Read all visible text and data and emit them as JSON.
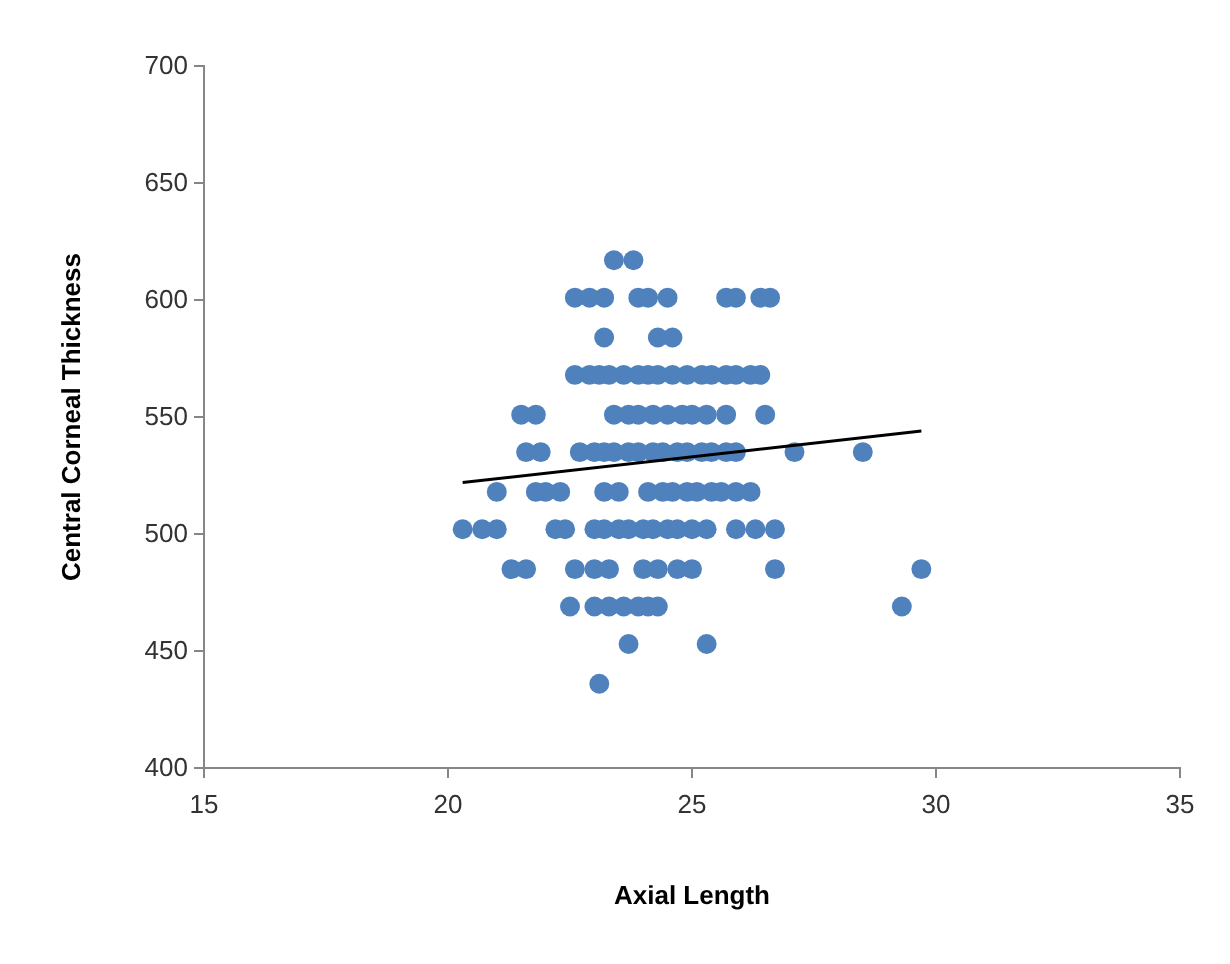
{
  "chart_data": {
    "type": "scatter",
    "xlabel": "Axial Length",
    "ylabel": "Central Corneal Thickness",
    "xlim": [
      15,
      35
    ],
    "xticks": [
      15,
      20,
      25,
      30,
      35
    ],
    "ylim": [
      400,
      700
    ],
    "yticks": [
      400,
      450,
      500,
      550,
      600,
      650,
      700
    ],
    "grid": false,
    "marker": "circle",
    "series": [
      {
        "color": "#4f81bd",
        "x": [
          23.4,
          23.8,
          22.6,
          22.9,
          23.2,
          23.9,
          24.1,
          24.5,
          25.7,
          25.9,
          26.4,
          26.6,
          23.2,
          24.3,
          24.6,
          22.6,
          22.9,
          23.1,
          23.3,
          23.6,
          23.9,
          24.1,
          24.3,
          24.6,
          24.9,
          25.2,
          25.4,
          25.7,
          25.9,
          26.2,
          26.4,
          21.5,
          21.8,
          23.4,
          23.7,
          23.9,
          24.2,
          24.5,
          24.8,
          25.0,
          25.3,
          25.7,
          26.5,
          21.6,
          21.9,
          22.7,
          23.0,
          23.2,
          23.4,
          23.7,
          23.9,
          24.2,
          24.4,
          24.7,
          24.9,
          25.2,
          25.4,
          25.7,
          25.9,
          27.1,
          28.5,
          21.0,
          21.8,
          22.0,
          22.3,
          23.2,
          23.5,
          24.1,
          24.4,
          24.6,
          24.9,
          25.1,
          25.4,
          25.6,
          25.9,
          26.2,
          20.3,
          20.7,
          21.0,
          22.2,
          22.4,
          23.0,
          23.2,
          23.5,
          23.7,
          24.0,
          24.2,
          24.5,
          24.7,
          25.0,
          25.3,
          25.9,
          26.3,
          26.7,
          21.3,
          21.6,
          22.6,
          23.0,
          23.3,
          24.0,
          24.3,
          24.7,
          25.0,
          26.7,
          29.7,
          22.5,
          23.0,
          23.3,
          23.6,
          23.9,
          24.1,
          24.3,
          29.3,
          23.7,
          25.3,
          23.1
        ],
        "values": [
          617,
          617,
          601,
          601,
          601,
          601,
          601,
          601,
          601,
          601,
          601,
          601,
          584,
          584,
          584,
          568,
          568,
          568,
          568,
          568,
          568,
          568,
          568,
          568,
          568,
          568,
          568,
          568,
          568,
          568,
          568,
          551,
          551,
          551,
          551,
          551,
          551,
          551,
          551,
          551,
          551,
          551,
          551,
          535,
          535,
          535,
          535,
          535,
          535,
          535,
          535,
          535,
          535,
          535,
          535,
          535,
          535,
          535,
          535,
          535,
          535,
          518,
          518,
          518,
          518,
          518,
          518,
          518,
          518,
          518,
          518,
          518,
          518,
          518,
          518,
          518,
          502,
          502,
          502,
          502,
          502,
          502,
          502,
          502,
          502,
          502,
          502,
          502,
          502,
          502,
          502,
          502,
          502,
          502,
          485,
          485,
          485,
          485,
          485,
          485,
          485,
          485,
          485,
          485,
          485,
          469,
          469,
          469,
          469,
          469,
          469,
          469,
          469,
          453,
          453,
          436
        ]
      },
      {
        "type": "line",
        "color": "#000000",
        "marker": "none",
        "x": [
          20.3,
          29.7
        ],
        "values": [
          522,
          544
        ]
      }
    ]
  }
}
